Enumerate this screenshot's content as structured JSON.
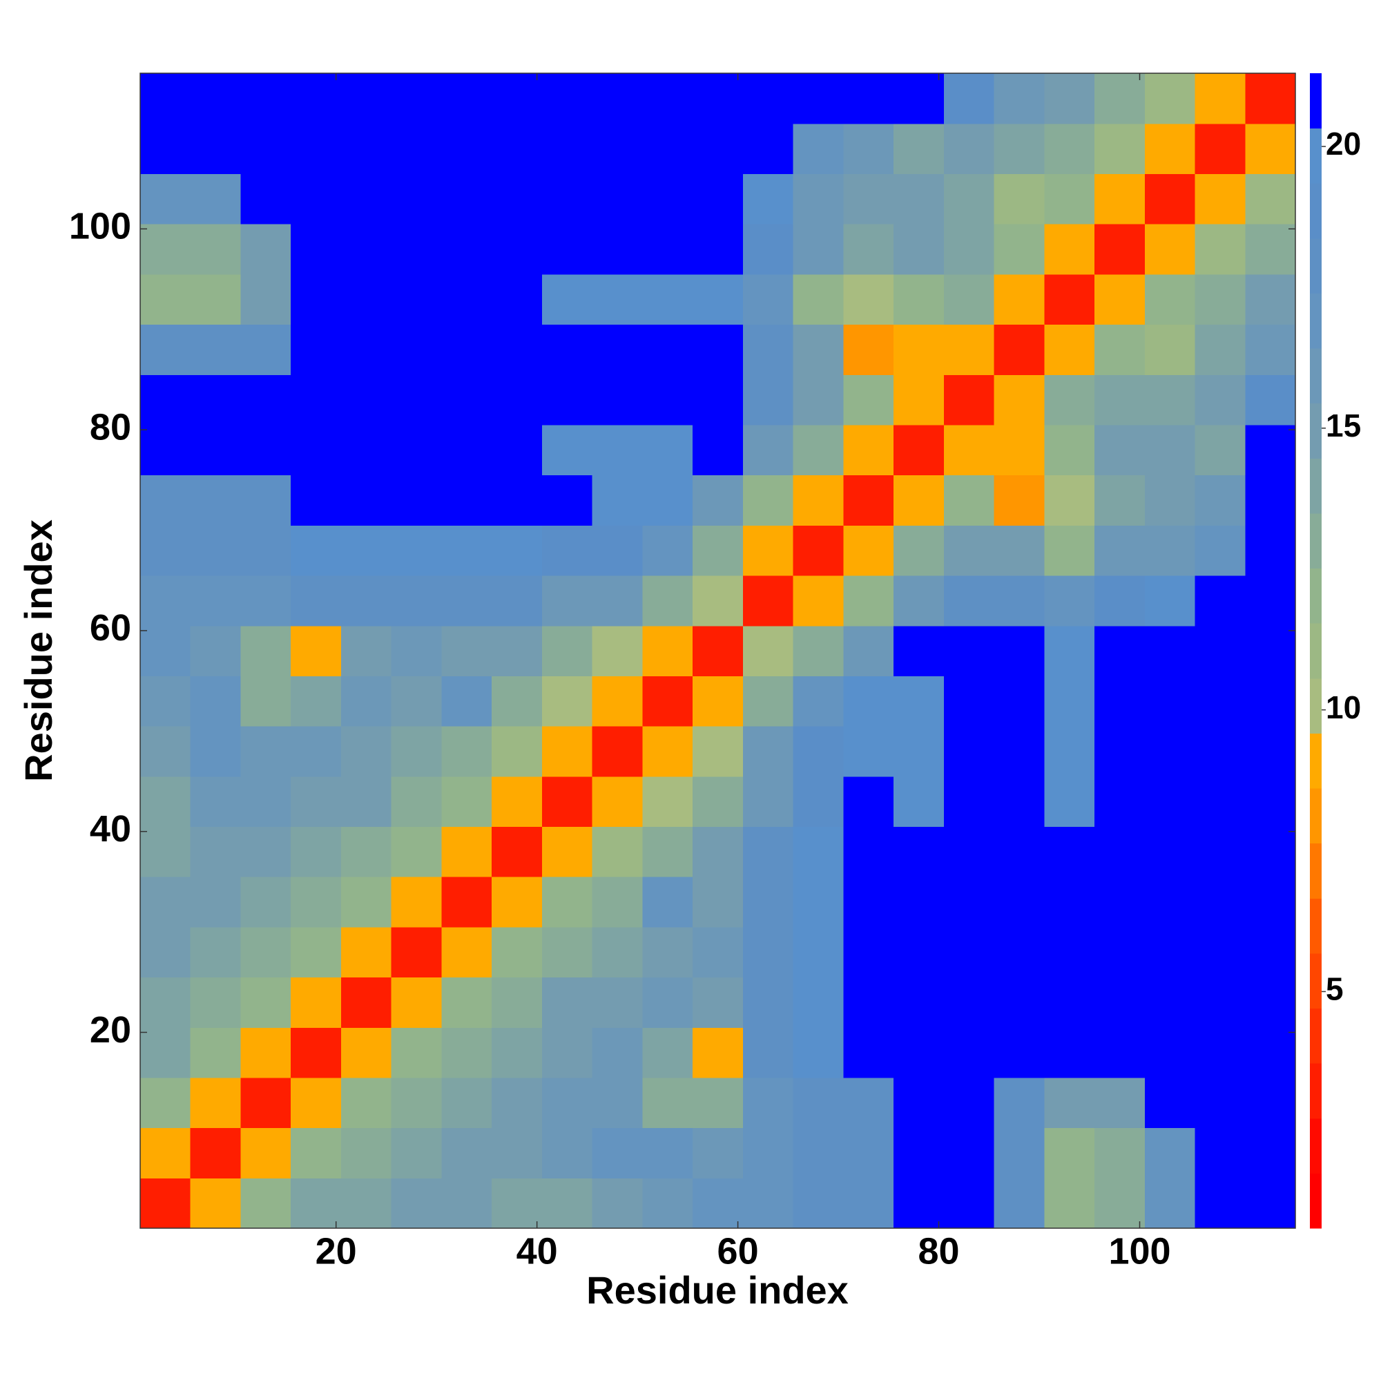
{
  "chart_data": {
    "type": "heatmap",
    "xlabel": "Residue index",
    "ylabel": "Residue index",
    "x": [
      3,
      8,
      13,
      18,
      23,
      28,
      33,
      38,
      43,
      48,
      53,
      58,
      63,
      68,
      73,
      78,
      83,
      88,
      93,
      98,
      103,
      108,
      113
    ],
    "y": [
      3,
      8,
      13,
      18,
      23,
      28,
      33,
      38,
      43,
      48,
      53,
      58,
      63,
      68,
      73,
      78,
      83,
      88,
      93,
      98,
      103,
      108,
      113
    ],
    "xlim": [
      0.5,
      115.5
    ],
    "ylim": [
      0.5,
      115.5
    ],
    "xticks": [
      20,
      40,
      60,
      80,
      100
    ],
    "yticks": [
      20,
      40,
      60,
      80,
      100
    ],
    "clim": [
      0.8,
      21.3
    ],
    "cticks": [
      5,
      10,
      15,
      20
    ],
    "colormap": [
      "#ff0000",
      "#ff0a00",
      "#ff1e00",
      "#ff3200",
      "#ff4600",
      "#ff5a00",
      "#ff7800",
      "#ff9600",
      "#ffaa00",
      "#a8bc80",
      "#9cb884",
      "#92b48c",
      "#88ac98",
      "#7ea4a4",
      "#749cb0",
      "#6c98b8",
      "#6494c0",
      "#5e90c4",
      "#5a8ec8",
      "#5890cc",
      "#0000ff"
    ],
    "z": [
      [
        3,
        9,
        12,
        14,
        14,
        15,
        15,
        14,
        14,
        15,
        16,
        17,
        17,
        18,
        18,
        21,
        21,
        18,
        12,
        13,
        17,
        21,
        21
      ],
      [
        9,
        3,
        9,
        12,
        13,
        14,
        15,
        15,
        16,
        17,
        17,
        16,
        17,
        18,
        18,
        21,
        21,
        18,
        12,
        13,
        17,
        21,
        21
      ],
      [
        12,
        9,
        3,
        9,
        12,
        13,
        14,
        15,
        16,
        16,
        13,
        13,
        17,
        18,
        18,
        21,
        21,
        18,
        15,
        15,
        21,
        21,
        21
      ],
      [
        14,
        12,
        9,
        3,
        9,
        12,
        13,
        14,
        15,
        16,
        14,
        9,
        18,
        20,
        21,
        21,
        21,
        21,
        21,
        21,
        21,
        21,
        21
      ],
      [
        14,
        13,
        12,
        9,
        3,
        9,
        12,
        13,
        15,
        15,
        16,
        15,
        18,
        20,
        21,
        21,
        21,
        21,
        21,
        21,
        21,
        21,
        21
      ],
      [
        15,
        14,
        13,
        12,
        9,
        3,
        9,
        12,
        13,
        14,
        15,
        16,
        18,
        20,
        21,
        21,
        21,
        21,
        21,
        21,
        21,
        21,
        21
      ],
      [
        15,
        15,
        14,
        13,
        12,
        9,
        3,
        9,
        12,
        13,
        17,
        15,
        18,
        20,
        21,
        21,
        21,
        21,
        21,
        21,
        21,
        21,
        21
      ],
      [
        14,
        15,
        15,
        14,
        13,
        12,
        9,
        3,
        9,
        11,
        13,
        15,
        18,
        20,
        21,
        21,
        21,
        21,
        21,
        21,
        21,
        21,
        21
      ],
      [
        14,
        16,
        16,
        15,
        15,
        13,
        12,
        9,
        3,
        9,
        10,
        13,
        16,
        19,
        21,
        20,
        21,
        21,
        20,
        21,
        21,
        21,
        21
      ],
      [
        15,
        17,
        16,
        16,
        15,
        14,
        13,
        11,
        9,
        3,
        9,
        10,
        16,
        19,
        20,
        20,
        21,
        21,
        20,
        21,
        21,
        21,
        21
      ],
      [
        16,
        17,
        13,
        14,
        16,
        15,
        17,
        13,
        10,
        9,
        3,
        9,
        13,
        17,
        20,
        20,
        21,
        21,
        20,
        21,
        21,
        21,
        21
      ],
      [
        17,
        16,
        13,
        9,
        15,
        16,
        15,
        15,
        13,
        10,
        9,
        3,
        10,
        13,
        16,
        21,
        21,
        21,
        20,
        21,
        21,
        21,
        21
      ],
      [
        17,
        17,
        17,
        18,
        18,
        18,
        18,
        18,
        16,
        16,
        13,
        10,
        3,
        9,
        12,
        16,
        18,
        18,
        17,
        19,
        20,
        21,
        21
      ],
      [
        18,
        18,
        18,
        20,
        20,
        20,
        20,
        20,
        19,
        19,
        17,
        13,
        9,
        3,
        9,
        13,
        15,
        15,
        12,
        16,
        16,
        17,
        21
      ],
      [
        18,
        18,
        18,
        21,
        21,
        21,
        21,
        21,
        21,
        20,
        20,
        16,
        12,
        9,
        3,
        9,
        12,
        8,
        10,
        14,
        15,
        16,
        21
      ],
      [
        21,
        21,
        21,
        21,
        21,
        21,
        21,
        21,
        20,
        20,
        20,
        21,
        16,
        13,
        9,
        3,
        9,
        9,
        12,
        15,
        15,
        14,
        21
      ],
      [
        21,
        21,
        21,
        21,
        21,
        21,
        21,
        21,
        21,
        21,
        21,
        21,
        18,
        15,
        12,
        9,
        3,
        9,
        13,
        14,
        14,
        15,
        19
      ],
      [
        18,
        18,
        18,
        21,
        21,
        21,
        21,
        21,
        21,
        21,
        21,
        21,
        18,
        15,
        8,
        9,
        9,
        3,
        9,
        12,
        11,
        14,
        16
      ],
      [
        12,
        12,
        15,
        21,
        21,
        21,
        21,
        21,
        20,
        20,
        20,
        20,
        17,
        12,
        10,
        12,
        13,
        9,
        3,
        9,
        12,
        13,
        15
      ],
      [
        13,
        13,
        15,
        21,
        21,
        21,
        21,
        21,
        21,
        21,
        21,
        21,
        19,
        16,
        14,
        15,
        14,
        12,
        9,
        3,
        9,
        11,
        13
      ],
      [
        17,
        17,
        21,
        21,
        21,
        21,
        21,
        21,
        21,
        21,
        21,
        21,
        20,
        16,
        15,
        15,
        14,
        11,
        12,
        9,
        3,
        9,
        11
      ],
      [
        21,
        21,
        21,
        21,
        21,
        21,
        21,
        21,
        21,
        21,
        21,
        21,
        21,
        17,
        16,
        14,
        15,
        14,
        13,
        11,
        9,
        3,
        9
      ],
      [
        21,
        21,
        21,
        21,
        21,
        21,
        21,
        21,
        21,
        21,
        21,
        21,
        21,
        21,
        21,
        21,
        19,
        16,
        15,
        13,
        11,
        9,
        3
      ]
    ]
  }
}
